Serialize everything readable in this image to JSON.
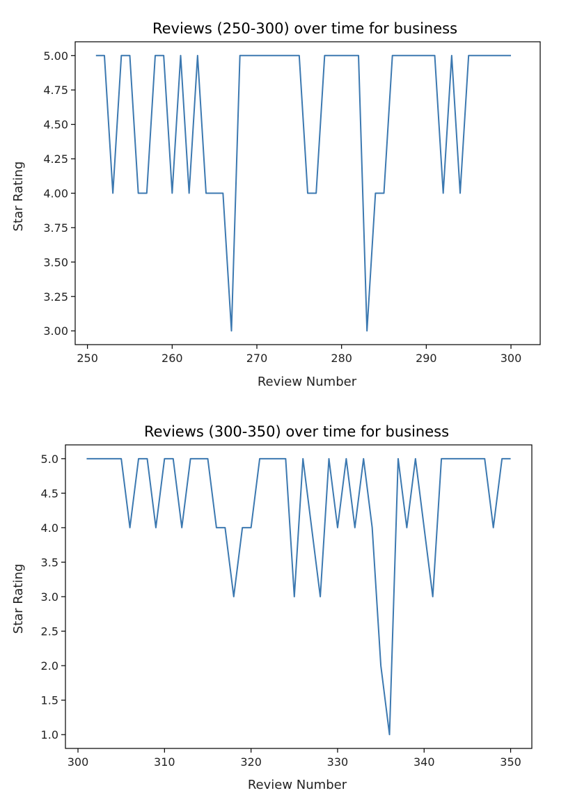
{
  "chart_data": [
    {
      "type": "line",
      "title": "Reviews (250-300) over time for business",
      "xlabel": "Review Number",
      "ylabel": "Star Rating",
      "xlim": [
        248.55,
        303.45
      ],
      "ylim": [
        2.9,
        5.1
      ],
      "xticks": [
        250,
        260,
        270,
        280,
        290,
        300
      ],
      "xtick_labels": [
        "250",
        "260",
        "270",
        "280",
        "290",
        "300"
      ],
      "yticks": [
        3.0,
        3.25,
        3.5,
        3.75,
        4.0,
        4.25,
        4.5,
        4.75,
        5.0
      ],
      "ytick_labels": [
        "3.00",
        "3.25",
        "3.50",
        "3.75",
        "4.00",
        "4.25",
        "4.50",
        "4.75",
        "5.00"
      ],
      "grid": false,
      "series": [
        {
          "color": "#3b78b0",
          "x": [
            251,
            252,
            253,
            254,
            255,
            256,
            257,
            258,
            259,
            260,
            261,
            262,
            263,
            264,
            265,
            266,
            267,
            268,
            269,
            270,
            271,
            272,
            273,
            274,
            275,
            276,
            277,
            278,
            279,
            280,
            281,
            282,
            283,
            284,
            285,
            286,
            287,
            288,
            289,
            290,
            291,
            292,
            293,
            294,
            295,
            296,
            297,
            298,
            299,
            300
          ],
          "y": [
            5,
            5,
            4,
            5,
            5,
            4,
            4,
            5,
            5,
            4,
            5,
            4,
            5,
            4,
            4,
            4,
            3,
            5,
            5,
            5,
            5,
            5,
            5,
            5,
            5,
            4,
            4,
            5,
            5,
            5,
            5,
            5,
            3,
            4,
            4,
            5,
            5,
            5,
            5,
            5,
            5,
            4,
            5,
            4,
            5,
            5,
            5,
            5,
            5,
            5
          ]
        }
      ]
    },
    {
      "type": "line",
      "title": "Reviews (300-350) over time for business",
      "xlabel": "Review Number",
      "ylabel": "Star Rating",
      "xlim": [
        298.55,
        352.45
      ],
      "ylim": [
        0.8,
        5.2
      ],
      "xticks": [
        300,
        310,
        320,
        330,
        340,
        350
      ],
      "xtick_labels": [
        "300",
        "310",
        "320",
        "330",
        "340",
        "350"
      ],
      "yticks": [
        1.0,
        1.5,
        2.0,
        2.5,
        3.0,
        3.5,
        4.0,
        4.5,
        5.0
      ],
      "ytick_labels": [
        "1.0",
        "1.5",
        "2.0",
        "2.5",
        "3.0",
        "3.5",
        "4.0",
        "4.5",
        "5.0"
      ],
      "grid": false,
      "series": [
        {
          "color": "#3b78b0",
          "x": [
            301,
            302,
            303,
            304,
            305,
            306,
            307,
            308,
            309,
            310,
            311,
            312,
            313,
            314,
            315,
            316,
            317,
            318,
            319,
            320,
            321,
            322,
            323,
            324,
            325,
            326,
            327,
            328,
            329,
            330,
            331,
            332,
            333,
            334,
            335,
            336,
            337,
            338,
            339,
            340,
            341,
            342,
            343,
            344,
            345,
            346,
            347,
            348,
            349,
            350
          ],
          "y": [
            5,
            5,
            5,
            5,
            5,
            4,
            5,
            5,
            4,
            5,
            5,
            4,
            5,
            5,
            5,
            4,
            4,
            3,
            4,
            4,
            5,
            5,
            5,
            5,
            3,
            5,
            4,
            3,
            5,
            4,
            5,
            4,
            5,
            4,
            2,
            1,
            5,
            4,
            5,
            4,
            3,
            5,
            5,
            5,
            5,
            5,
            5,
            4,
            5,
            5
          ]
        }
      ]
    }
  ]
}
